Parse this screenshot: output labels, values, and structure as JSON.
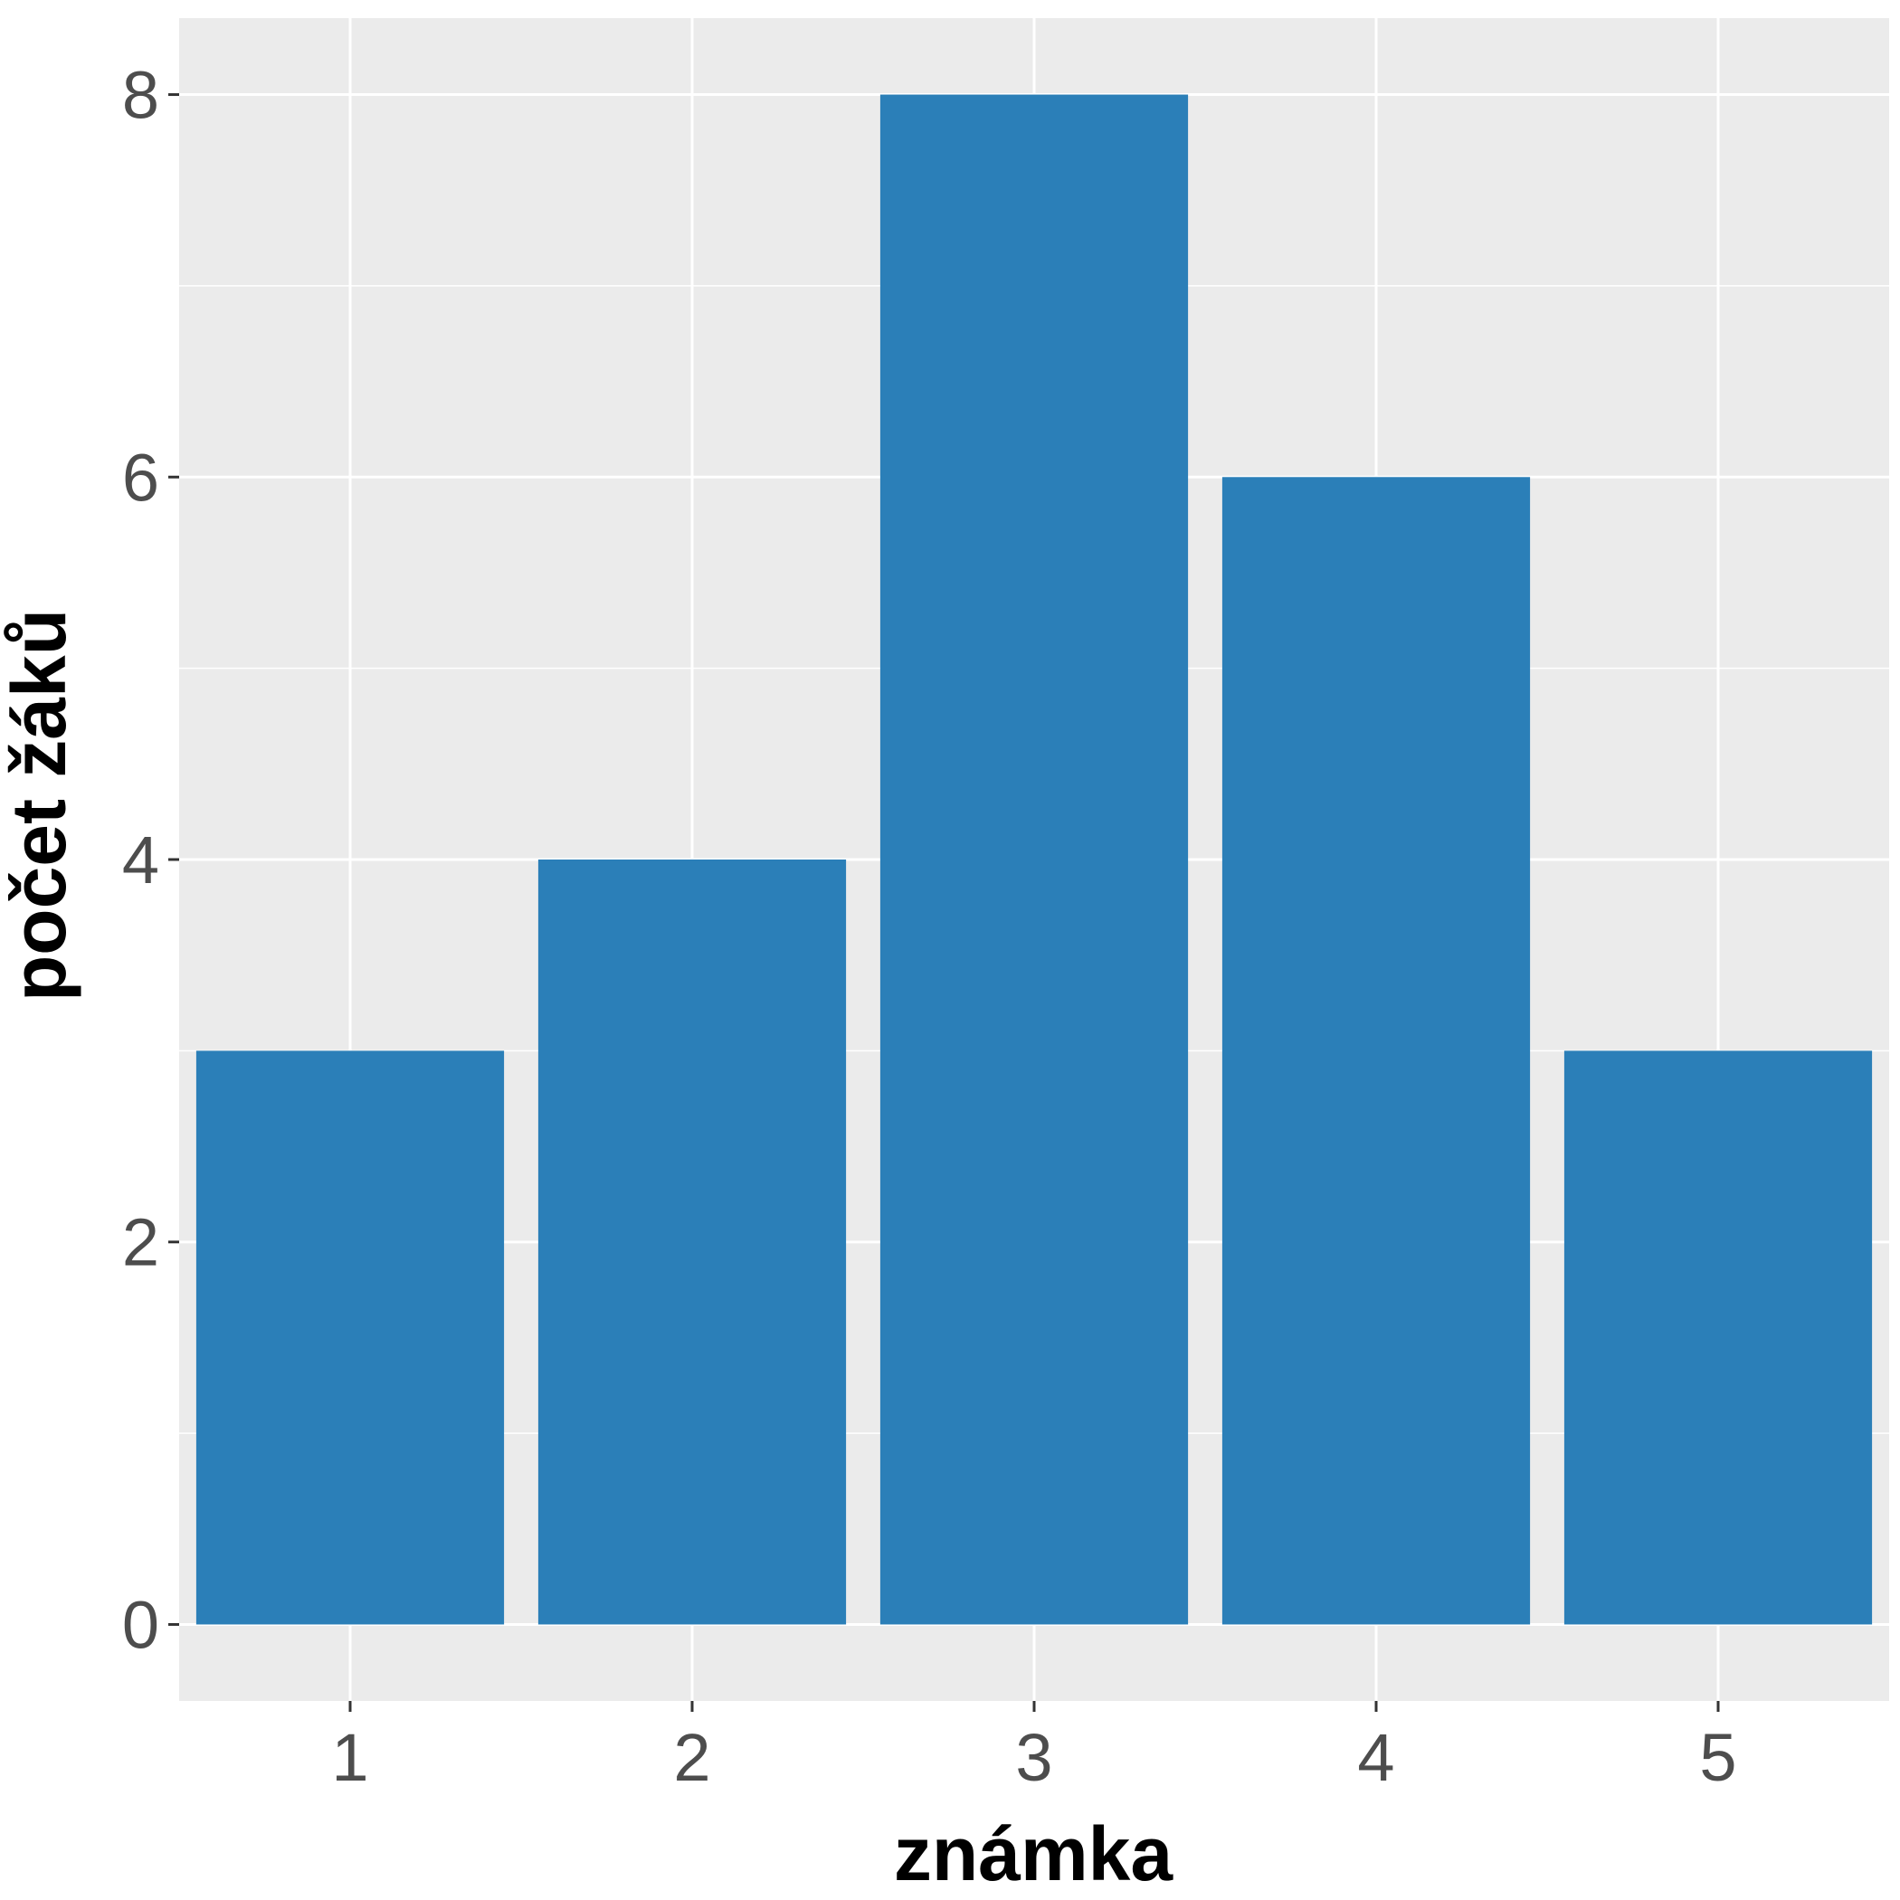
{
  "chart_data": {
    "type": "bar",
    "categories": [
      "1",
      "2",
      "3",
      "4",
      "5"
    ],
    "values": [
      3,
      4,
      8,
      6,
      3
    ],
    "title": "",
    "xlabel": "známka",
    "ylabel": "počet žáků",
    "ylim": [
      -0.4,
      8.4
    ],
    "yticks": [
      0,
      2,
      4,
      6,
      8
    ],
    "y_minor_grid": [
      1,
      3,
      5,
      7
    ],
    "grid": true,
    "legend": "none",
    "colors": {
      "bar": "#2b7fb8",
      "panel": "#ebebeb",
      "grid": "#ffffff",
      "tick_text": "#4d4d4d",
      "tick_mark": "#333333",
      "axis_title": "#000000"
    }
  }
}
